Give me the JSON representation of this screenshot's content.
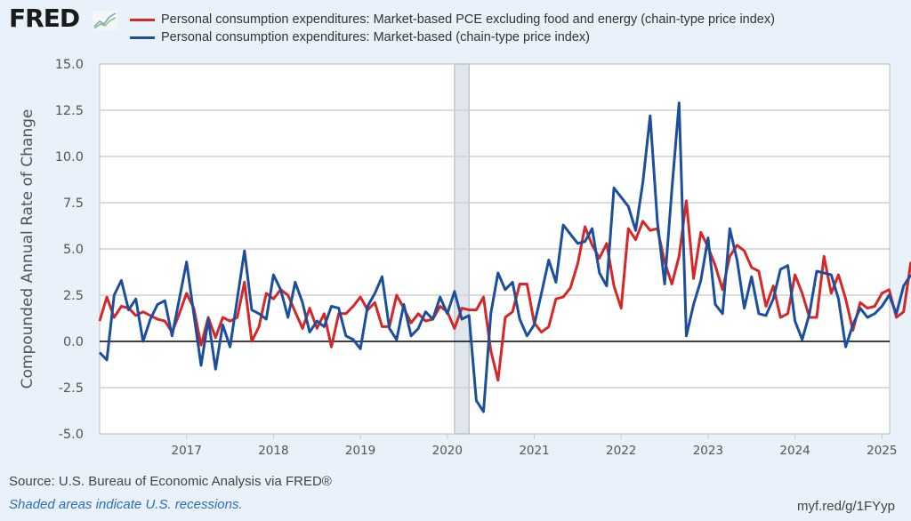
{
  "header": {
    "logo_text": "FRED",
    "logo_icon": "line-chart-icon"
  },
  "footer": {
    "source": "Source: U.S. Bureau of Economic Analysis via FRED®",
    "note": "Shaded areas indicate U.S. recessions.",
    "shortlink": "myf.red/g/1FYyp"
  },
  "chart_data": {
    "type": "line",
    "title": "",
    "xlabel": "",
    "ylabel": "Compounded Annual Rate of Change",
    "ylim": [
      -5.0,
      15.0
    ],
    "yticks": [
      "15.0",
      "12.5",
      "10.0",
      "7.5",
      "5.0",
      "2.5",
      "0.0",
      "-2.5",
      "-5.0"
    ],
    "ytick_values": [
      15.0,
      12.5,
      10.0,
      7.5,
      5.0,
      2.5,
      0.0,
      -2.5,
      -5.0
    ],
    "xticks": [
      "2017",
      "2018",
      "2019",
      "2020",
      "2021",
      "2022",
      "2023",
      "2024",
      "2025"
    ],
    "xlim": [
      "2016-01",
      "2025-03"
    ],
    "grid": true,
    "legend_position": "top",
    "frequency": "monthly",
    "start": "2016-01",
    "recessions": [
      {
        "start": "2020-02",
        "end": "2020-04"
      }
    ],
    "series": [
      {
        "name": "Personal consumption expenditures: Market-based PCE excluding food and energy (chain-type price index)",
        "color": "#d62728",
        "values": [
          1.1,
          2.4,
          1.3,
          1.9,
          1.8,
          1.4,
          1.6,
          1.4,
          1.2,
          1.1,
          0.5,
          1.5,
          2.6,
          1.8,
          -0.2,
          1.3,
          0.2,
          1.3,
          1.1,
          1.3,
          3.2,
          0.0,
          0.8,
          2.6,
          2.3,
          2.8,
          2.5,
          1.6,
          0.7,
          1.8,
          0.7,
          1.5,
          -0.3,
          1.5,
          1.5,
          1.9,
          2.4,
          1.7,
          2.1,
          0.8,
          0.8,
          2.5,
          1.8,
          1.0,
          1.5,
          1.1,
          1.2,
          1.9,
          1.6,
          0.7,
          1.8,
          1.7,
          1.7,
          2.4,
          -0.5,
          -2.1,
          1.3,
          1.6,
          3.1,
          3.1,
          1.0,
          0.5,
          0.8,
          2.3,
          2.4,
          2.9,
          4.2,
          6.2,
          5.2,
          4.5,
          5.3,
          3.0,
          1.8,
          6.1,
          5.5,
          6.5,
          6.0,
          6.1,
          4.3,
          3.1,
          4.6,
          7.6,
          3.4,
          5.9,
          5.1,
          4.1,
          2.8,
          4.6,
          5.2,
          4.9,
          4.0,
          3.8,
          1.9,
          3.0,
          1.3,
          1.5,
          3.6,
          2.6,
          1.3,
          1.3,
          4.6,
          2.6,
          3.6,
          2.3,
          0.6,
          2.1,
          1.8,
          1.9,
          2.6,
          2.8,
          1.3,
          1.6,
          4.3
        ]
      },
      {
        "name": "Personal consumption expenditures: Market-based (chain-type price index)",
        "color": "#1b4f9c",
        "values": [
          -0.6,
          -1.0,
          2.5,
          3.3,
          1.7,
          2.3,
          0.0,
          1.2,
          2.0,
          2.2,
          0.3,
          2.3,
          4.3,
          1.5,
          -1.3,
          1.2,
          -1.5,
          0.9,
          -0.3,
          2.3,
          4.9,
          1.7,
          1.5,
          1.2,
          3.6,
          2.8,
          1.3,
          3.2,
          2.1,
          0.5,
          1.1,
          0.8,
          1.9,
          1.8,
          0.3,
          0.1,
          -0.4,
          1.9,
          2.6,
          3.5,
          0.7,
          0.1,
          2.0,
          0.3,
          0.7,
          1.6,
          1.2,
          2.4,
          1.5,
          2.7,
          1.2,
          1.4,
          -3.2,
          -3.8,
          1.5,
          3.7,
          2.8,
          3.2,
          1.2,
          0.3,
          0.9,
          2.6,
          4.4,
          3.2,
          6.3,
          5.8,
          5.3,
          5.4,
          6.1,
          3.7,
          3.0,
          8.3,
          7.8,
          7.3,
          6.0,
          8.6,
          12.2,
          6.5,
          3.1,
          8.2,
          12.9,
          0.3,
          2.0,
          3.3,
          5.6,
          2.0,
          1.5,
          6.1,
          4.4,
          1.8,
          3.5,
          1.5,
          1.4,
          2.3,
          3.9,
          4.1,
          1.1,
          0.1,
          1.5,
          3.8,
          3.7,
          3.6,
          2.3,
          -0.3,
          0.9,
          1.8,
          1.3,
          1.5,
          1.9,
          2.5,
          1.5,
          3.0,
          3.6
        ]
      }
    ]
  }
}
